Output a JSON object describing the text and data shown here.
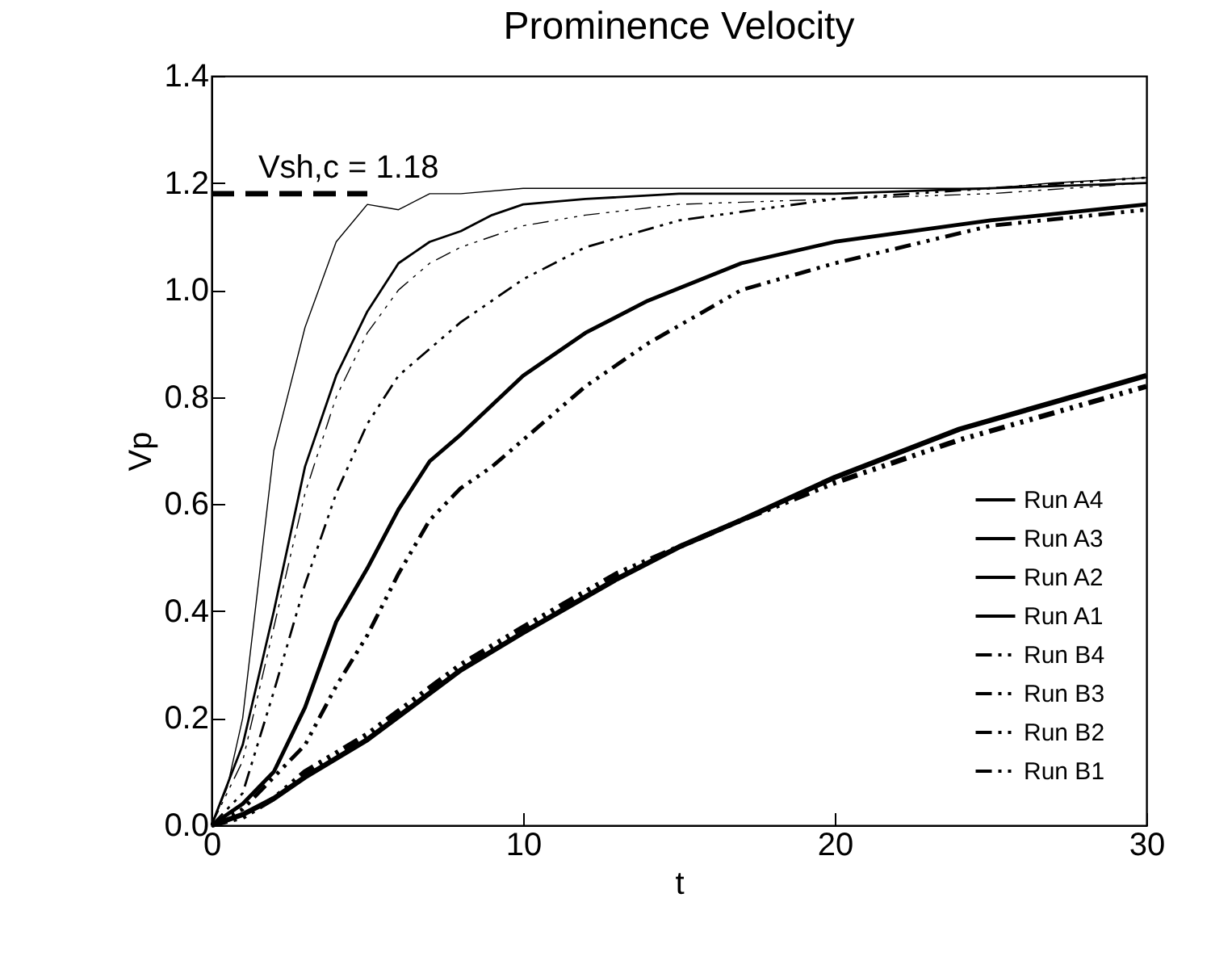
{
  "chart_data": {
    "type": "line",
    "title": "Prominence Velocity",
    "xlabel": "t",
    "ylabel": "Vp",
    "xlim": [
      0,
      30
    ],
    "xticks": [
      0,
      10,
      20,
      30
    ],
    "ylim": [
      0,
      1.4
    ],
    "yticks": [
      {
        "value": 0,
        "label": "0.0"
      },
      0.2,
      0.4,
      0.6,
      0.8,
      {
        "value": 1,
        "label": "1.0"
      },
      1.2,
      1.4
    ],
    "legend": "bottom right",
    "grid": false,
    "annotations": [
      {
        "text": "Vsh,c = 1.18",
        "x": 1.5,
        "y": 1.18
      }
    ],
    "series": [
      {
        "name": "Run A4",
        "color": "#000000",
        "line_style": "solid",
        "x": [
          0,
          1,
          2,
          3,
          5,
          8,
          10,
          13,
          15,
          17,
          20,
          24,
          27,
          30
        ],
        "values": [
          0,
          0.02,
          0.05,
          0.09,
          0.16,
          0.29,
          0.36,
          0.46,
          0.52,
          0.57,
          0.65,
          0.74,
          0.79,
          0.84
        ]
      },
      {
        "name": "Run A3",
        "color": "#000000",
        "line_style": "solid",
        "x": [
          0,
          1,
          2,
          3,
          4,
          5,
          6,
          7,
          8,
          10,
          12,
          14,
          17,
          20,
          25,
          30
        ],
        "values": [
          0,
          0.04,
          0.1,
          0.22,
          0.38,
          0.48,
          0.59,
          0.68,
          0.73,
          0.84,
          0.92,
          0.98,
          1.05,
          1.09,
          1.13,
          1.16
        ]
      },
      {
        "name": "Run A2",
        "color": "#000000",
        "line_style": "solid",
        "x": [
          0,
          1,
          2,
          3,
          4,
          5,
          6,
          7,
          8,
          9,
          10,
          12,
          15,
          20,
          25,
          30
        ],
        "values": [
          0,
          0.15,
          0.4,
          0.67,
          0.84,
          0.96,
          1.05,
          1.09,
          1.11,
          1.14,
          1.16,
          1.17,
          1.18,
          1.18,
          1.19,
          1.2
        ]
      },
      {
        "name": "Run A1",
        "color": "#000000",
        "line_style": "solid",
        "x": [
          0,
          0.5,
          1,
          2,
          3,
          4,
          5,
          6,
          7,
          8,
          10,
          15,
          20,
          25,
          27,
          30
        ],
        "values": [
          0,
          0.07,
          0.2,
          0.7,
          0.93,
          1.09,
          1.16,
          1.15,
          1.18,
          1.18,
          1.19,
          1.19,
          1.19,
          1.19,
          1.2,
          1.21
        ]
      },
      {
        "name": "Run B4",
        "color": "#000000",
        "line_style": "dotted",
        "x": [
          0,
          1,
          2,
          3,
          5,
          8,
          10,
          13,
          15,
          17,
          20,
          24,
          27,
          30
        ],
        "values": [
          0,
          0.015,
          0.05,
          0.1,
          0.17,
          0.3,
          0.37,
          0.47,
          0.52,
          0.57,
          0.64,
          0.72,
          0.77,
          0.82
        ]
      },
      {
        "name": "Run B3",
        "color": "#000000",
        "line_style": "dotted",
        "x": [
          0,
          1,
          2,
          3,
          4,
          5,
          6,
          7,
          8,
          9,
          10,
          12,
          14,
          17,
          20,
          25,
          30
        ],
        "values": [
          0,
          0.03,
          0.09,
          0.15,
          0.26,
          0.355,
          0.47,
          0.57,
          0.63,
          0.67,
          0.72,
          0.82,
          0.9,
          1.0,
          1.05,
          1.12,
          1.15
        ]
      },
      {
        "name": "Run B2",
        "color": "#000000",
        "line_style": "dotted",
        "x": [
          0,
          1,
          2,
          3,
          4,
          5,
          6,
          7,
          8,
          10,
          12,
          15,
          20,
          25,
          30
        ],
        "values": [
          0,
          0.06,
          0.25,
          0.45,
          0.62,
          0.75,
          0.84,
          0.89,
          0.94,
          1.02,
          1.08,
          1.13,
          1.17,
          1.19,
          1.21
        ]
      },
      {
        "name": "Run B1",
        "color": "#000000",
        "line_style": "dotted",
        "x": [
          0,
          1,
          2,
          3,
          4,
          5,
          6,
          7,
          8,
          10,
          12,
          15,
          20,
          25,
          30
        ],
        "values": [
          0,
          0.12,
          0.37,
          0.62,
          0.8,
          0.92,
          1.0,
          1.05,
          1.08,
          1.12,
          1.14,
          1.16,
          1.17,
          1.18,
          1.2
        ]
      },
      {
        "color": "#000000",
        "line_style": "dashed",
        "x": [
          0,
          5
        ],
        "values": [
          1.18,
          1.18
        ]
      }
    ]
  }
}
